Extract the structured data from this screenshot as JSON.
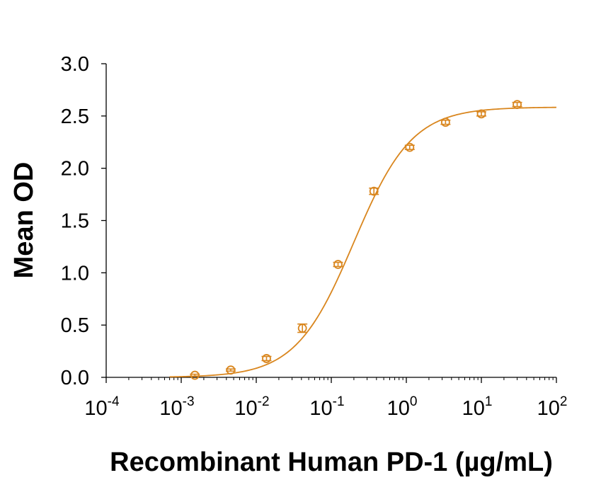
{
  "chart_data": {
    "type": "scatter",
    "xlabel": "Recombinant Human PD-1 (µg/mL)",
    "ylabel": "Mean OD",
    "x_scale": "log",
    "xlim": [
      0.0001,
      100
    ],
    "ylim": [
      0,
      3.0
    ],
    "grid": false,
    "y_ticks": [
      "0.0",
      "0.5",
      "1.0",
      "1.5",
      "2.0",
      "2.5",
      "3.0"
    ],
    "x_ticks": [
      {
        "base": "10",
        "exp": "-4",
        "value": 0.0001
      },
      {
        "base": "10",
        "exp": "-3",
        "value": 0.001
      },
      {
        "base": "10",
        "exp": "-2",
        "value": 0.01
      },
      {
        "base": "10",
        "exp": "-1",
        "value": 0.1
      },
      {
        "base": "10",
        "exp": "0",
        "value": 1
      },
      {
        "base": "10",
        "exp": "1",
        "value": 10
      },
      {
        "base": "10",
        "exp": "2",
        "value": 100
      }
    ],
    "color": "#D9861E",
    "points": [
      {
        "x": 0.00152,
        "y": 0.02,
        "err": 0.01
      },
      {
        "x": 0.00457,
        "y": 0.07,
        "err": 0.01
      },
      {
        "x": 0.0137,
        "y": 0.18,
        "err": 0.02
      },
      {
        "x": 0.0412,
        "y": 0.47,
        "err": 0.04
      },
      {
        "x": 0.123,
        "y": 1.08,
        "err": 0.02
      },
      {
        "x": 0.37,
        "y": 1.78,
        "err": 0.03
      },
      {
        "x": 1.11,
        "y": 2.2,
        "err": 0.02
      },
      {
        "x": 3.33,
        "y": 2.44,
        "err": 0.02
      },
      {
        "x": 10,
        "y": 2.52,
        "err": 0.02
      },
      {
        "x": 30,
        "y": 2.61,
        "err": 0.02
      }
    ],
    "fit_curve": {
      "model": "4PL",
      "bottom": 0.0,
      "top": 2.585,
      "ec50": 0.2,
      "hill": 1.12,
      "x_start": 0.0007,
      "x_end": 100
    }
  }
}
